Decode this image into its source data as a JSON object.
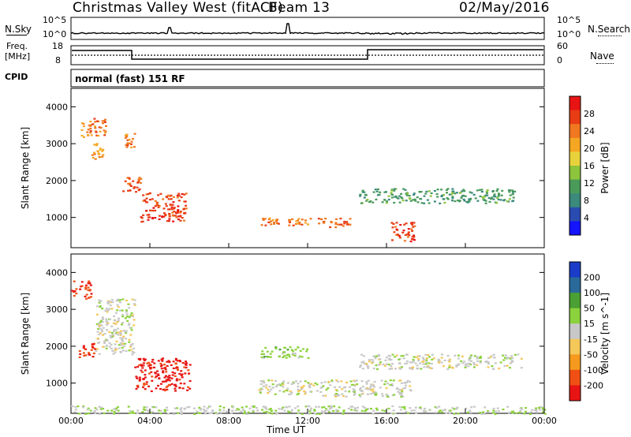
{
  "header": {
    "title": "Christmas Valley West (fitACF)",
    "beam": "Beam 13",
    "date": "02/May/2016"
  },
  "panels": {
    "nsky_label": "N.Sky",
    "nsky_ticks": [
      "10^5",
      "10^0"
    ],
    "nsearch_label": "N.Search",
    "nsearch_ticks": [
      "10^5",
      "10^0"
    ],
    "freq_label_1": "Freq.",
    "freq_label_2": "[MHz]",
    "freq_ticks": [
      "18",
      "8"
    ],
    "nave_label": "Nave",
    "nave_ticks": [
      "60",
      "0"
    ],
    "cpid_label": "CPID",
    "cpid_value": "normal (fast) 151 RF"
  },
  "x_axis": {
    "label": "Time UT",
    "ticks": [
      "00:00",
      "04:00",
      "08:00",
      "12:00",
      "16:00",
      "20:00",
      "00:00"
    ]
  },
  "power_panel": {
    "ylabel": "Slant Range [km]",
    "yticks": [
      "1000",
      "2000",
      "3000",
      "4000"
    ],
    "colorbar_label": "Power [dB]",
    "colorbar_ticks": [
      "4",
      "8",
      "12",
      "16",
      "20",
      "24",
      "28"
    ]
  },
  "velocity_panel": {
    "ylabel": "Slant Range [km]",
    "yticks": [
      "1000",
      "2000",
      "3000",
      "4000"
    ],
    "colorbar_label": "Velocity [m s^-1]",
    "colorbar_ticks": [
      "200",
      "100",
      "50",
      "15",
      "-15",
      "-50",
      "-100",
      "-200"
    ]
  },
  "chart_data": [
    {
      "type": "heatmap",
      "title": "Power",
      "xlabel": "Time UT",
      "ylabel": "Slant Range [km]",
      "xlim": [
        "00:00",
        "24:00"
      ],
      "ylim": [
        180,
        4500
      ],
      "colorbar": {
        "label": "Power [dB]",
        "range": [
          0,
          30
        ],
        "colors": [
          "#1414ff",
          "#2a4cb0",
          "#3b8a7c",
          "#4a9a5a",
          "#8cc43c",
          "#e8d23c",
          "#f5a623",
          "#f07820",
          "#e83c14",
          "#e81414"
        ]
      },
      "regions": [
        {
          "t": [
            0.5,
            1.8
          ],
          "r": [
            3200,
            3700
          ],
          "level": 22
        },
        {
          "t": [
            1.0,
            1.6
          ],
          "r": [
            2600,
            3100
          ],
          "level": 20
        },
        {
          "t": [
            2.7,
            3.2
          ],
          "r": [
            2900,
            3300
          ],
          "level": 22
        },
        {
          "t": [
            2.5,
            3.5
          ],
          "r": [
            1700,
            2100
          ],
          "level": 24
        },
        {
          "t": [
            3.5,
            5.8
          ],
          "r": [
            900,
            1700
          ],
          "level": 26
        },
        {
          "t": [
            9.6,
            10.5
          ],
          "r": [
            800,
            1000
          ],
          "level": 22
        },
        {
          "t": [
            11.0,
            12.2
          ],
          "r": [
            800,
            1000
          ],
          "level": 22
        },
        {
          "t": [
            12.5,
            14.2
          ],
          "r": [
            750,
            1000
          ],
          "level": 24
        },
        {
          "t": [
            16.2,
            17.4
          ],
          "r": [
            350,
            900
          ],
          "level": 26
        },
        {
          "t": [
            14.6,
            22.5
          ],
          "r": [
            1400,
            1800
          ],
          "level": 10
        }
      ]
    },
    {
      "type": "heatmap",
      "title": "Velocity",
      "xlabel": "Time UT",
      "ylabel": "Slant Range [km]",
      "xlim": [
        "00:00",
        "24:00"
      ],
      "ylim": [
        180,
        4500
      ],
      "colorbar": {
        "label": "Velocity [m s^-1]",
        "range": [
          -250,
          250
        ],
        "colors": [
          "#e81414",
          "#f05014",
          "#f59a1e",
          "#f5c85a",
          "#c8c8c8",
          "#8cd23c",
          "#4aa032",
          "#2a6a9a",
          "#1a3cc8"
        ]
      },
      "regions": [
        {
          "t": [
            0.0,
            1.0
          ],
          "r": [
            3300,
            3800
          ],
          "level": -200
        },
        {
          "t": [
            0.3,
            1.2
          ],
          "r": [
            1700,
            2100
          ],
          "level": -200
        },
        {
          "t": [
            3.2,
            6.0
          ],
          "r": [
            800,
            1700
          ],
          "level": -220
        },
        {
          "t": [
            1.2,
            3.2
          ],
          "r": [
            1800,
            3300
          ],
          "level": 0
        },
        {
          "t": [
            9.5,
            12.5
          ],
          "r": [
            700,
            1100
          ],
          "level": 0
        },
        {
          "t": [
            12.5,
            17.2
          ],
          "r": [
            650,
            1100
          ],
          "level": 0
        },
        {
          "t": [
            14.6,
            22.8
          ],
          "r": [
            1400,
            1800
          ],
          "level": 0
        },
        {
          "t": [
            9.5,
            12.0
          ],
          "r": [
            1700,
            2000
          ],
          "level": 50
        },
        {
          "t": [
            0.0,
            24.0
          ],
          "r": [
            180,
            400
          ],
          "level": 20
        }
      ]
    }
  ]
}
